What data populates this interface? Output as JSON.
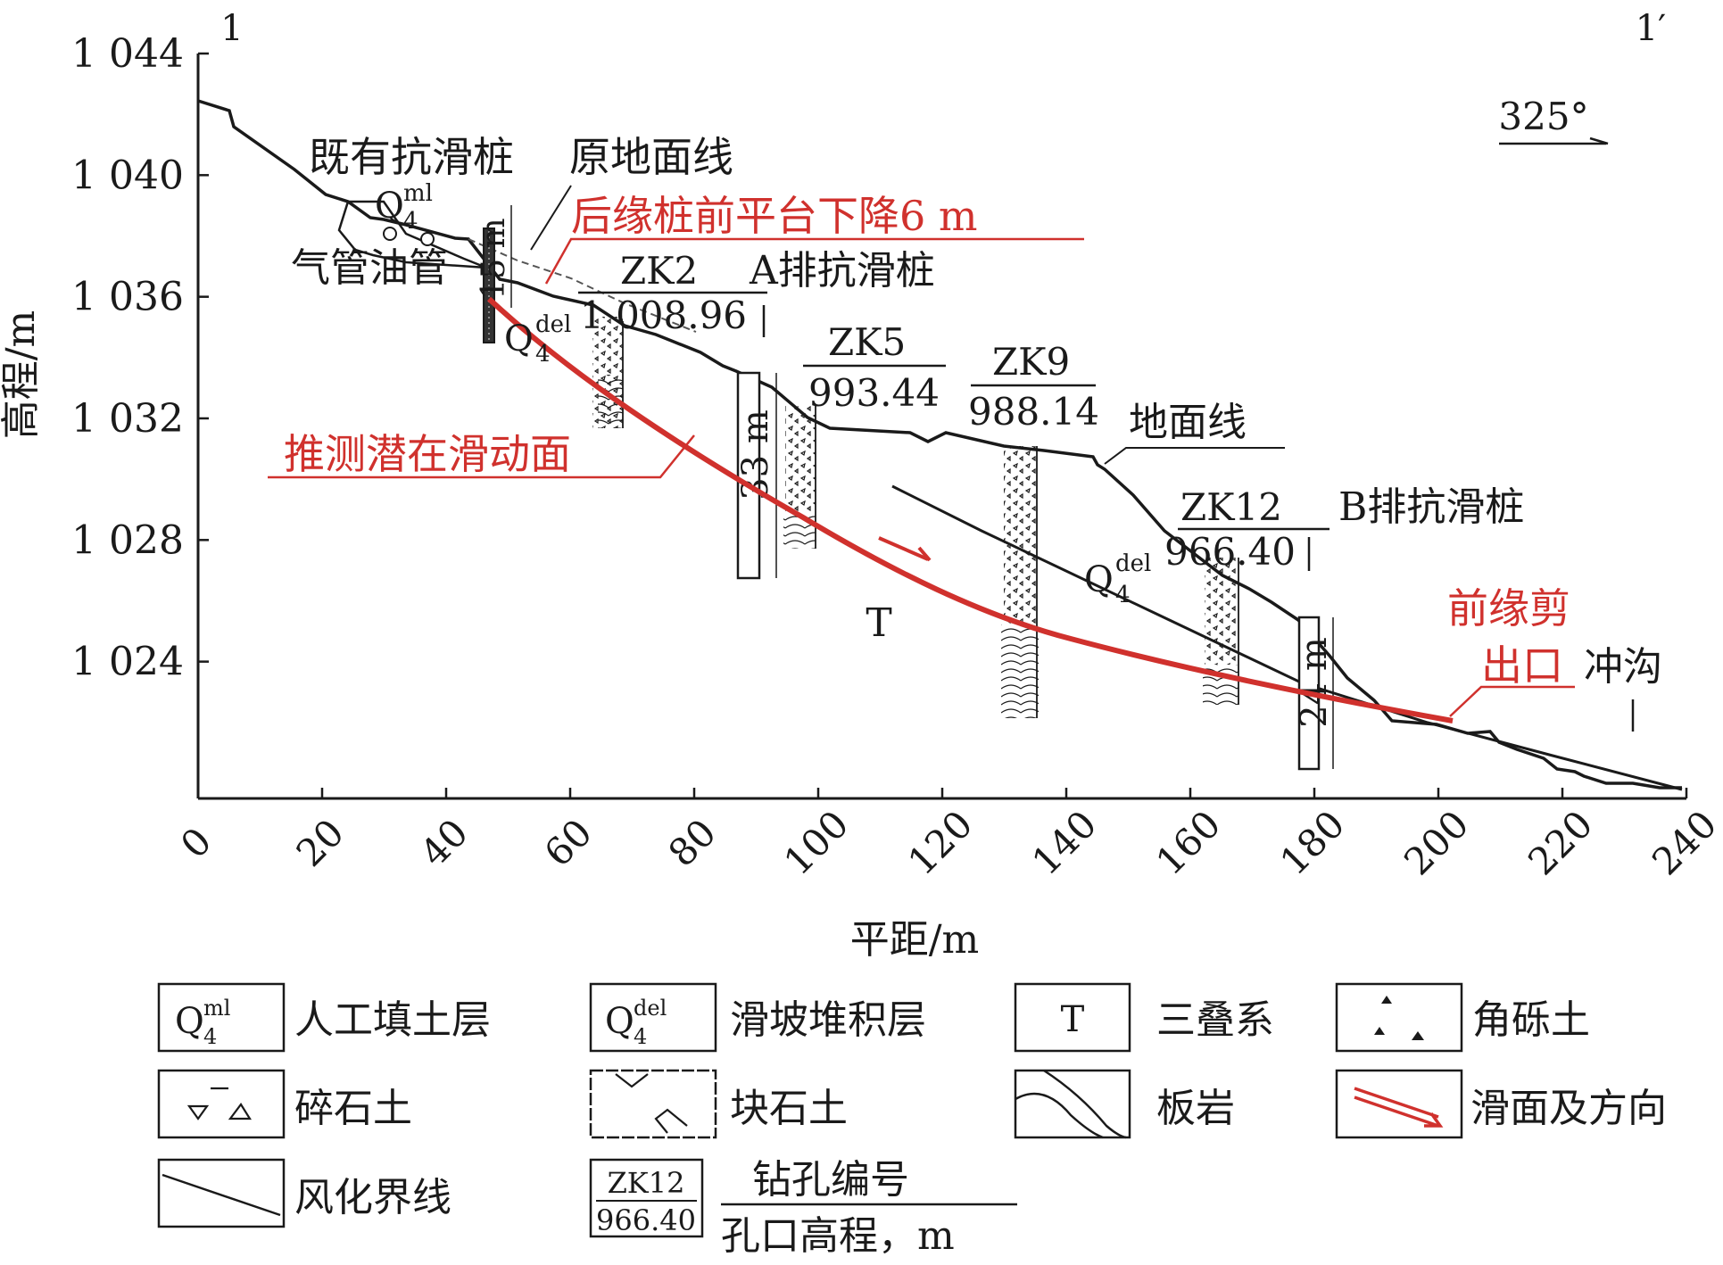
{
  "section": {
    "start_label": "1",
    "end_label": "1′",
    "direction": "325°"
  },
  "axes": {
    "xlabel": "平距/m",
    "ylabel": "高程/m",
    "xticks": [
      "0",
      "20",
      "40",
      "60",
      "80",
      "100",
      "120",
      "140",
      "160",
      "180",
      "200",
      "220",
      "240"
    ],
    "yticks": [
      "1 044",
      "1 040",
      "1 036",
      "1 032",
      "1 028",
      "1 024"
    ],
    "xlim": [
      0,
      240
    ],
    "ylim": [
      1019.5,
      1044
    ]
  },
  "annotations": {
    "existing_pile": "既有抗滑桩",
    "original_ground": "原地面线",
    "gas_pipe": "气管油管",
    "pile_platform_drop": "后缘桩前平台下降6 m",
    "row_a": "A排抗滑桩",
    "row_b": "B排抗滑桩",
    "slip_surface": "推测潜在滑动面",
    "ground_line": "地面线",
    "toe_exit_line1": "前缘剪",
    "toe_exit_line2": "出口",
    "gully": "冲沟",
    "pile_len_top": "15 m",
    "pile_len_a": "33 m",
    "pile_len_b": "24 m",
    "stratum_T": "T",
    "q_ml_main": "Q",
    "q_ml_sub": "4",
    "q_ml_sup": "ml",
    "q_del_main": "Q",
    "q_del_sub": "4",
    "q_del_sup": "del"
  },
  "boreholes": [
    {
      "id": "ZK2",
      "elevation": "1 008.96"
    },
    {
      "id": "ZK5",
      "elevation": "993.44"
    },
    {
      "id": "ZK9",
      "elevation": "988.14"
    },
    {
      "id": "ZK12",
      "elevation": "966.40"
    }
  ],
  "legend": {
    "fill": "人工填土层",
    "slide": "滑坡堆积层",
    "triassic": "三叠系",
    "angular_gravel": "角砾土",
    "gravel": "碎石土",
    "block": "块石土",
    "slate": "板岩",
    "slip_dir": "滑面及方向",
    "weathering": "风化界线",
    "bore_id_label": "钻孔编号",
    "bore_elev_label": "孔口高程，m",
    "sample_id": "ZK12",
    "sample_elev": "966.40"
  },
  "colors": {
    "ink": "#1a1a1a",
    "red": "#d0312d"
  }
}
